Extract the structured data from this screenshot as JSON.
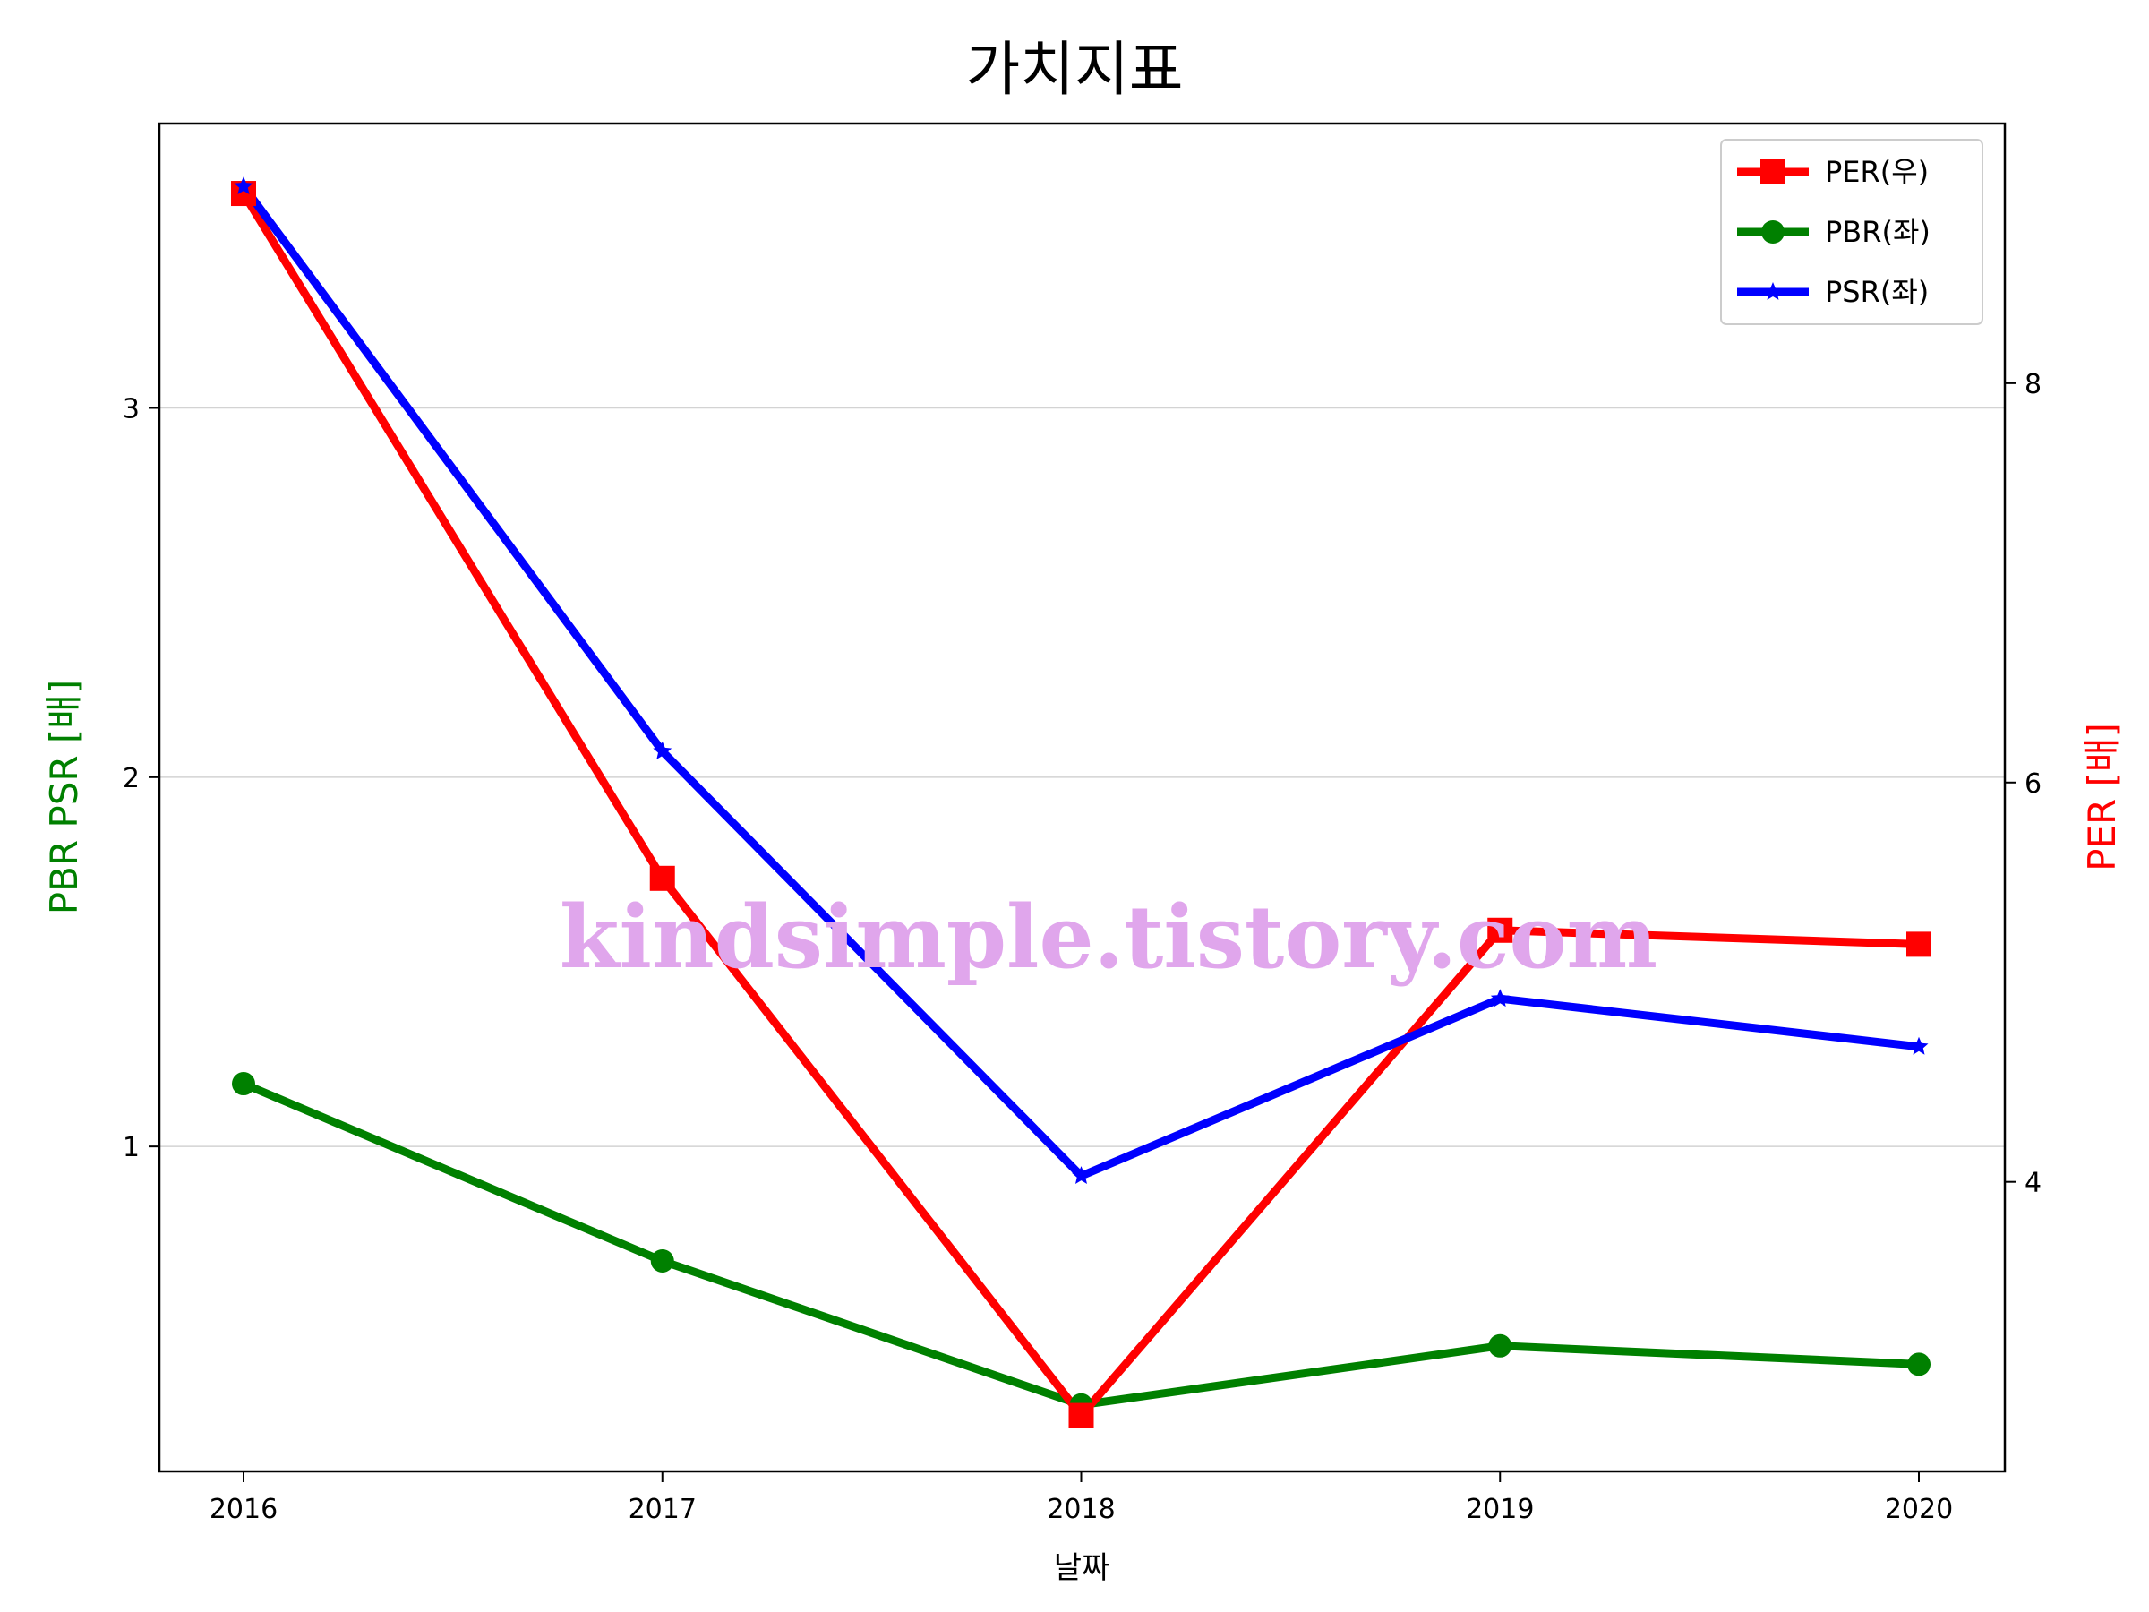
{
  "chart_data": {
    "type": "line",
    "title": "가치지표",
    "xlabel": "날짜",
    "ylabel_left": "PBR PSR [배]",
    "ylabel_right": "PER [배]",
    "categories": [
      "2016",
      "2017",
      "2018",
      "2019",
      "2020"
    ],
    "left_axis": {
      "ticks": [
        "1",
        "2",
        "3"
      ],
      "ylim": [
        0.12,
        3.77
      ],
      "grid": true
    },
    "right_axis": {
      "ticks": [
        "4",
        "6",
        "8"
      ],
      "ylim": [
        2.55,
        9.3
      ]
    },
    "legend": {
      "position": "top-right"
    },
    "series": [
      {
        "name": "PER(우)",
        "axis": "right",
        "color": "#ff0000",
        "marker": "square",
        "values": [
          8.95,
          5.52,
          2.83,
          5.26,
          5.19
        ]
      },
      {
        "name": "PBR(좌)",
        "axis": "left",
        "color": "#008000",
        "marker": "circle",
        "values": [
          1.17,
          0.69,
          0.3,
          0.46,
          0.41
        ]
      },
      {
        "name": "PSR(좌)",
        "axis": "left",
        "color": "#0000ff",
        "marker": "star",
        "values": [
          3.6,
          2.07,
          0.92,
          1.4,
          1.27
        ]
      }
    ],
    "watermark": "kindsimple.tistory.com"
  }
}
